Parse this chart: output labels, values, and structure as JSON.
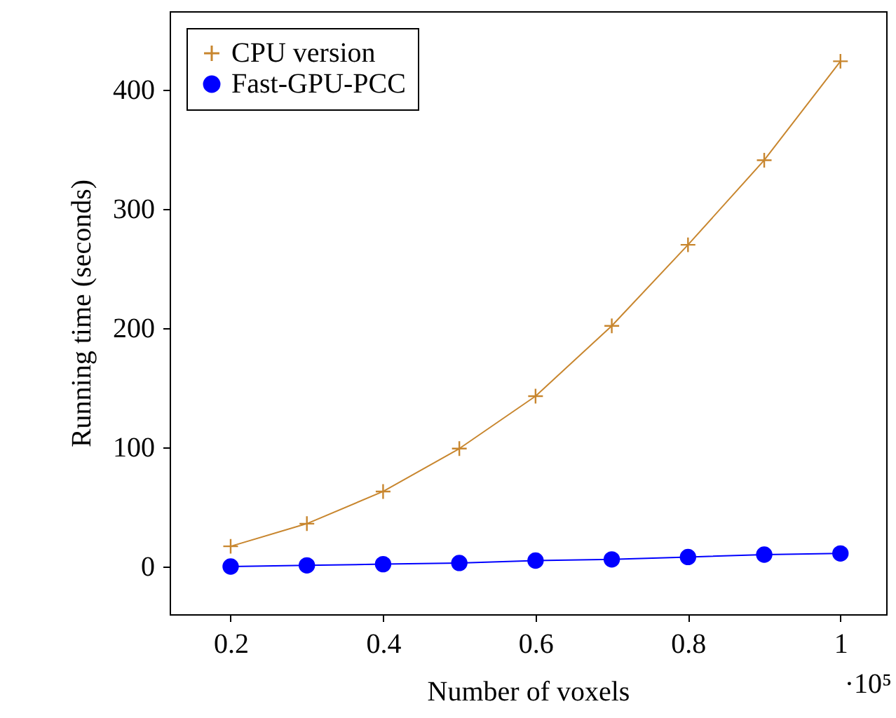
{
  "chart_data": {
    "type": "line",
    "xlabel": "Number of voxels",
    "ylabel": "Running time (seconds)",
    "x": [
      0.2,
      0.3,
      0.4,
      0.5,
      0.6,
      0.7,
      0.8,
      0.9,
      1.0
    ],
    "series": [
      {
        "name": "CPU version",
        "color": "#c8862e",
        "marker": "cross",
        "values": [
          17,
          36,
          63,
          99,
          143,
          202,
          270,
          341,
          424
        ]
      },
      {
        "name": "Fast-GPU-PCC",
        "color": "#0000ff",
        "marker": "circle",
        "values": [
          0,
          1,
          2,
          3,
          5,
          6,
          8,
          10,
          11
        ]
      }
    ],
    "xlim": [
      0.12,
      1.06
    ],
    "ylim": [
      -40,
      466
    ],
    "xticks": [
      0.2,
      0.4,
      0.6,
      0.8,
      1
    ],
    "yticks": [
      0,
      100,
      200,
      300,
      400
    ],
    "grid": false,
    "legend": "top left",
    "line_style": "solid",
    "annotations": [
      "·10⁵"
    ]
  }
}
